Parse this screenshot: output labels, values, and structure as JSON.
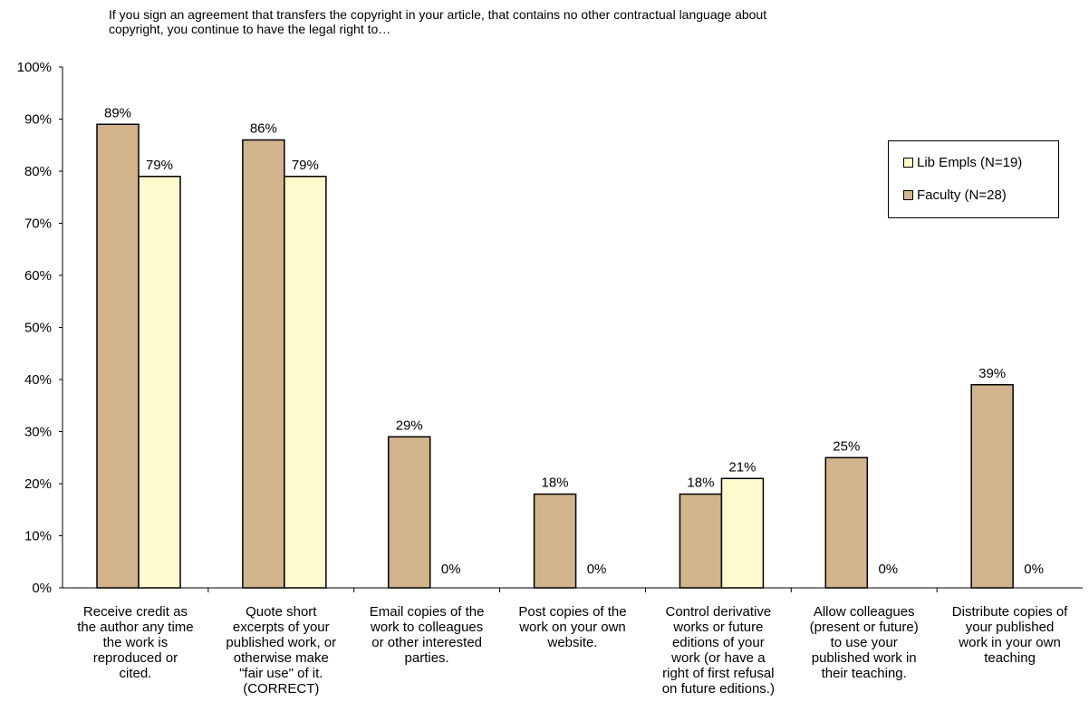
{
  "chart_data": {
    "type": "bar",
    "title": "If you sign an agreement that transfers the copyright in your article, that contains no other contractual language about\ncopyright, you continue to have the legal right to…",
    "xlabel": "",
    "ylabel": "",
    "ylim": [
      0,
      100
    ],
    "yticks": [
      "0%",
      "10%",
      "20%",
      "30%",
      "40%",
      "50%",
      "60%",
      "70%",
      "80%",
      "90%",
      "100%"
    ],
    "grid": false,
    "legend_position": "top-right",
    "categories": [
      "Receive credit as\nthe author any time\nthe work is\nreproduced or\ncited.",
      "Quote short\nexcerpts of your\npublished work, or\notherwise make\n\"fair use\" of it.\n(CORRECT)",
      "Email copies of the\nwork to colleagues\nor other interested\nparties.",
      "Post copies of the\nwork on your own\nwebsite.",
      "Control derivative\nworks or future\neditions of your\nwork (or have a\nright of first refusal\non future editions.)",
      "Allow colleagues\n(present or future)\nto use your\npublished work in\ntheir teaching.",
      "Distribute copies of\nyour published\nwork in your own\nteaching"
    ],
    "series": [
      {
        "name": "Faculty (N=28)",
        "color": "#d2b48c",
        "values": [
          89,
          86,
          29,
          18,
          18,
          25,
          39
        ],
        "labels": [
          "89%",
          "86%",
          "29%",
          "18%",
          "18%",
          "25%",
          "39%"
        ]
      },
      {
        "name": "Lib Empls (N=19)",
        "color": "#fffacd",
        "values": [
          79,
          79,
          0,
          0,
          21,
          0,
          0
        ],
        "labels": [
          "79%",
          "79%",
          "0%",
          "0%",
          "21%",
          "0%",
          "0%"
        ]
      }
    ],
    "legend_order": [
      1,
      0
    ]
  }
}
